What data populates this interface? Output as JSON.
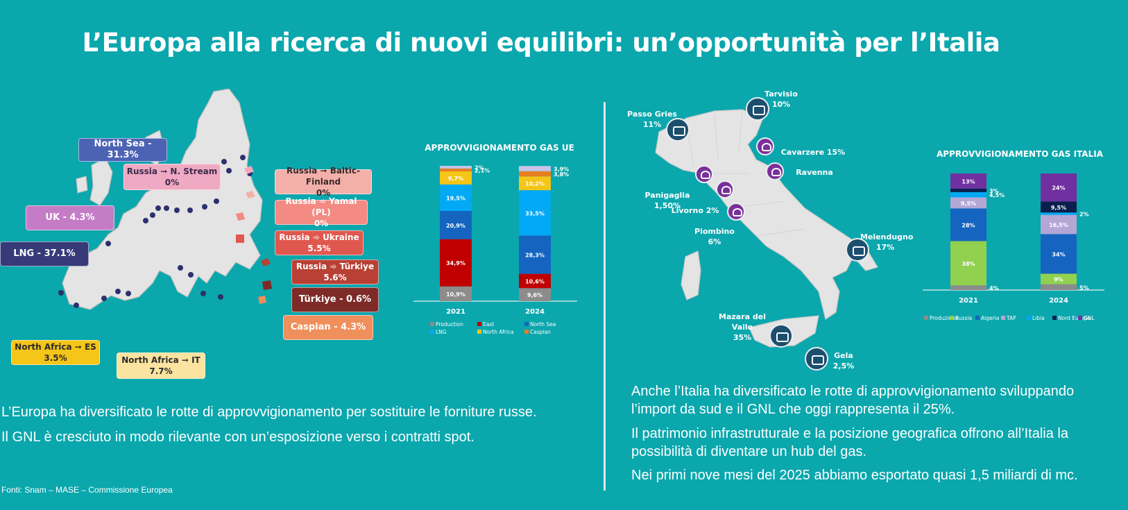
{
  "title": "L’Europa alla ricerca di nuovi equilibri: un’opportunità per l’Italia",
  "europe_labels": [
    {
      "text": "North Sea - 31.3%",
      "bg": "#4c63b4",
      "fg": "#ffffff"
    },
    {
      "text": "Russia ➞ N. Stream\n0%",
      "bg": "#f0a9c2",
      "fg": "#3b2a4a"
    },
    {
      "text": "Russia ➞ Baltic-Finland\n0%",
      "bg": "#f3b0aa",
      "fg": "#3b2a2a"
    },
    {
      "text": "Russia ➾ Yamal (PL)\n0%",
      "bg": "#f38a84",
      "fg": "#ffffff"
    },
    {
      "text": "Russia ➾ Ukraine\n5.5%",
      "bg": "#e0574f",
      "fg": "#ffffff"
    },
    {
      "text": "Russia ➾ Türkiye\n5.6%",
      "bg": "#b84034",
      "fg": "#ffffff"
    },
    {
      "text": "Türkiye - 0.6%",
      "bg": "#7e2b27",
      "fg": "#ffffff"
    },
    {
      "text": "Caspian - 4.3%",
      "bg": "#ee8f5c",
      "fg": "#ffffff"
    },
    {
      "text": "UK - 4.3%",
      "bg": "#c57cc6",
      "fg": "#ffffff"
    },
    {
      "text": "LNG - 37.1%",
      "bg": "#363a78",
      "fg": "#ffffff"
    },
    {
      "text": "North Africa ➞ ES\n3.5%",
      "bg": "#f5c518",
      "fg": "#2a2a2a"
    },
    {
      "text": "North Africa ➞ IT\n7.7%",
      "bg": "#fbe3a0",
      "fg": "#2a2a2a"
    }
  ],
  "italy_points": [
    {
      "name": "Tarvisio",
      "value": "10%",
      "type": "pipeline"
    },
    {
      "name": "Passo Gries",
      "value": "11%",
      "type": "pipeline"
    },
    {
      "name": "Cavarzere 15%",
      "value": "",
      "type": "lng"
    },
    {
      "name": "Ravenna",
      "value": "",
      "type": "lng"
    },
    {
      "name": "Panigaglia 1,50%",
      "value": "",
      "type": "lng"
    },
    {
      "name": "Livorno 2%",
      "value": "",
      "type": "lng"
    },
    {
      "name": "Piombino 6%",
      "value": "",
      "type": "lng"
    },
    {
      "name": "Melendugno",
      "value": "17%",
      "type": "pipeline"
    },
    {
      "name": "Mazara del Vallo",
      "value": "35%",
      "type": "pipeline"
    },
    {
      "name": "Gela",
      "value": "2,5%",
      "type": "pipeline"
    }
  ],
  "text": {
    "left_p1": "L’Europa ha diversificato le rotte di approvvigionamento per sostituire le forniture russe.",
    "left_p2": "Il GNL è cresciuto in modo rilevante con un’esposizione verso i contratti spot.",
    "right_p1": "Anche l’Italia ha diversificato le rotte di approvvigionamento sviluppando l’import da sud e il GNL che oggi rappresenta il 25%.",
    "right_p2": "Il patrimonio infrastrutturale e la posizione geografica offrono all’Italia la possibilità di diventare un hub del gas.",
    "right_p3": "Nei primi nove mesi del 2025 abbiamo esportato quasi 1,5 miliardi di mc.",
    "source": "Fonti: Snam – MASE – Commissione Europea"
  },
  "chart_data": [
    {
      "type": "bar",
      "stacked": true,
      "title": "APPROVVIGIONAMENTO GAS UE",
      "categories": [
        "2021",
        "2024"
      ],
      "series": [
        {
          "name": "Production",
          "color": "#8c8c8c",
          "values": [
            10.9,
            9.6
          ],
          "labels": [
            "10,9%",
            "9,6%"
          ]
        },
        {
          "name": "East",
          "color": "#c00000",
          "values": [
            34.9,
            10.6
          ],
          "labels": [
            "34,9%",
            "10,6%"
          ]
        },
        {
          "name": "North Sea",
          "color": "#1565c0",
          "values": [
            20.9,
            28.3
          ],
          "labels": [
            "20,9%",
            "28,3%"
          ]
        },
        {
          "name": "LNG",
          "color": "#03a9f4",
          "values": [
            19.5,
            33.5
          ],
          "labels": [
            "19,5%",
            "33,5%"
          ]
        },
        {
          "name": "North Africa",
          "color": "#f5c518",
          "values": [
            9.7,
            10.2
          ],
          "labels": [
            "9,7%",
            "10,2%"
          ]
        },
        {
          "name": "Caspian",
          "color": "#e67e22",
          "values": [
            2.1,
            3.8
          ],
          "labels": [
            "2,1%",
            "3,8%"
          ]
        },
        {
          "name": "",
          "color": "#c9c3e6",
          "values": [
            2.0,
            3.9
          ],
          "labels": [
            "2%",
            "3,9%"
          ]
        }
      ],
      "legend": [
        "Production",
        "East",
        "North Sea",
        "LNG",
        "North Africa",
        "Caspian"
      ]
    },
    {
      "type": "bar",
      "stacked": true,
      "title": "APPROVVIGIONAMENTO GAS ITALIA",
      "categories": [
        "2021",
        "2024"
      ],
      "series": [
        {
          "name": "Produzione",
          "color": "#8c8c8c",
          "values": [
            4,
            5
          ],
          "labels": [
            "4%",
            "5%"
          ]
        },
        {
          "name": "Russia",
          "color": "#92d050",
          "values": [
            38,
            9
          ],
          "labels": [
            "38%",
            "9%"
          ]
        },
        {
          "name": "Algeria",
          "color": "#1565c0",
          "values": [
            28,
            34
          ],
          "labels": [
            "28%",
            "34%"
          ]
        },
        {
          "name": "TAP",
          "color": "#b4a7d6",
          "values": [
            9.5,
            16.5
          ],
          "labels": [
            "9,5%",
            "16,5%"
          ]
        },
        {
          "name": "Libia",
          "color": "#03a9f4",
          "values": [
            4.5,
            2
          ],
          "labels": [
            "4,5%",
            "2%"
          ]
        },
        {
          "name": "Nord Europa",
          "color": "#0b1f4f",
          "values": [
            3,
            9.5
          ],
          "labels": [
            "3%",
            "9,5%"
          ]
        },
        {
          "name": "GNL",
          "color": "#7030a0",
          "values": [
            13,
            24
          ],
          "labels": [
            "13%",
            "24%"
          ]
        }
      ],
      "legend": [
        "Produzione",
        "Russia",
        "Algeria",
        "TAP",
        "Libia",
        "Nord Europa",
        "GNL"
      ]
    }
  ]
}
